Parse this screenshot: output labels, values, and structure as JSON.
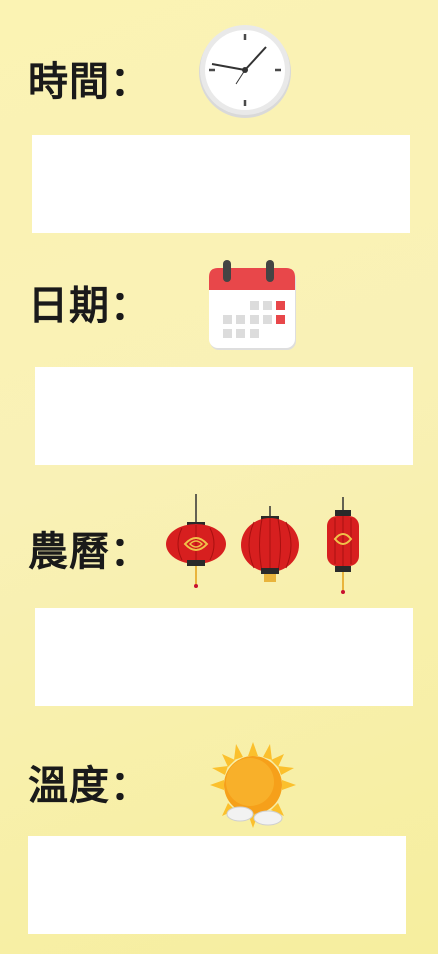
{
  "sections": [
    {
      "label": "時間：",
      "icon": "clock-icon",
      "value": ""
    },
    {
      "label": "日期：",
      "icon": "calendar-icon",
      "value": ""
    },
    {
      "label": "農曆：",
      "icon": "lantern-icon",
      "value": ""
    },
    {
      "label": "溫度：",
      "icon": "sun-cloud-icon",
      "value": ""
    }
  ],
  "colors": {
    "background": "#f9f1b6",
    "field": "#ffffff",
    "lantern_red": "#d71f1f",
    "calendar_red": "#e8474a",
    "sun_orange": "#f6a01a"
  }
}
